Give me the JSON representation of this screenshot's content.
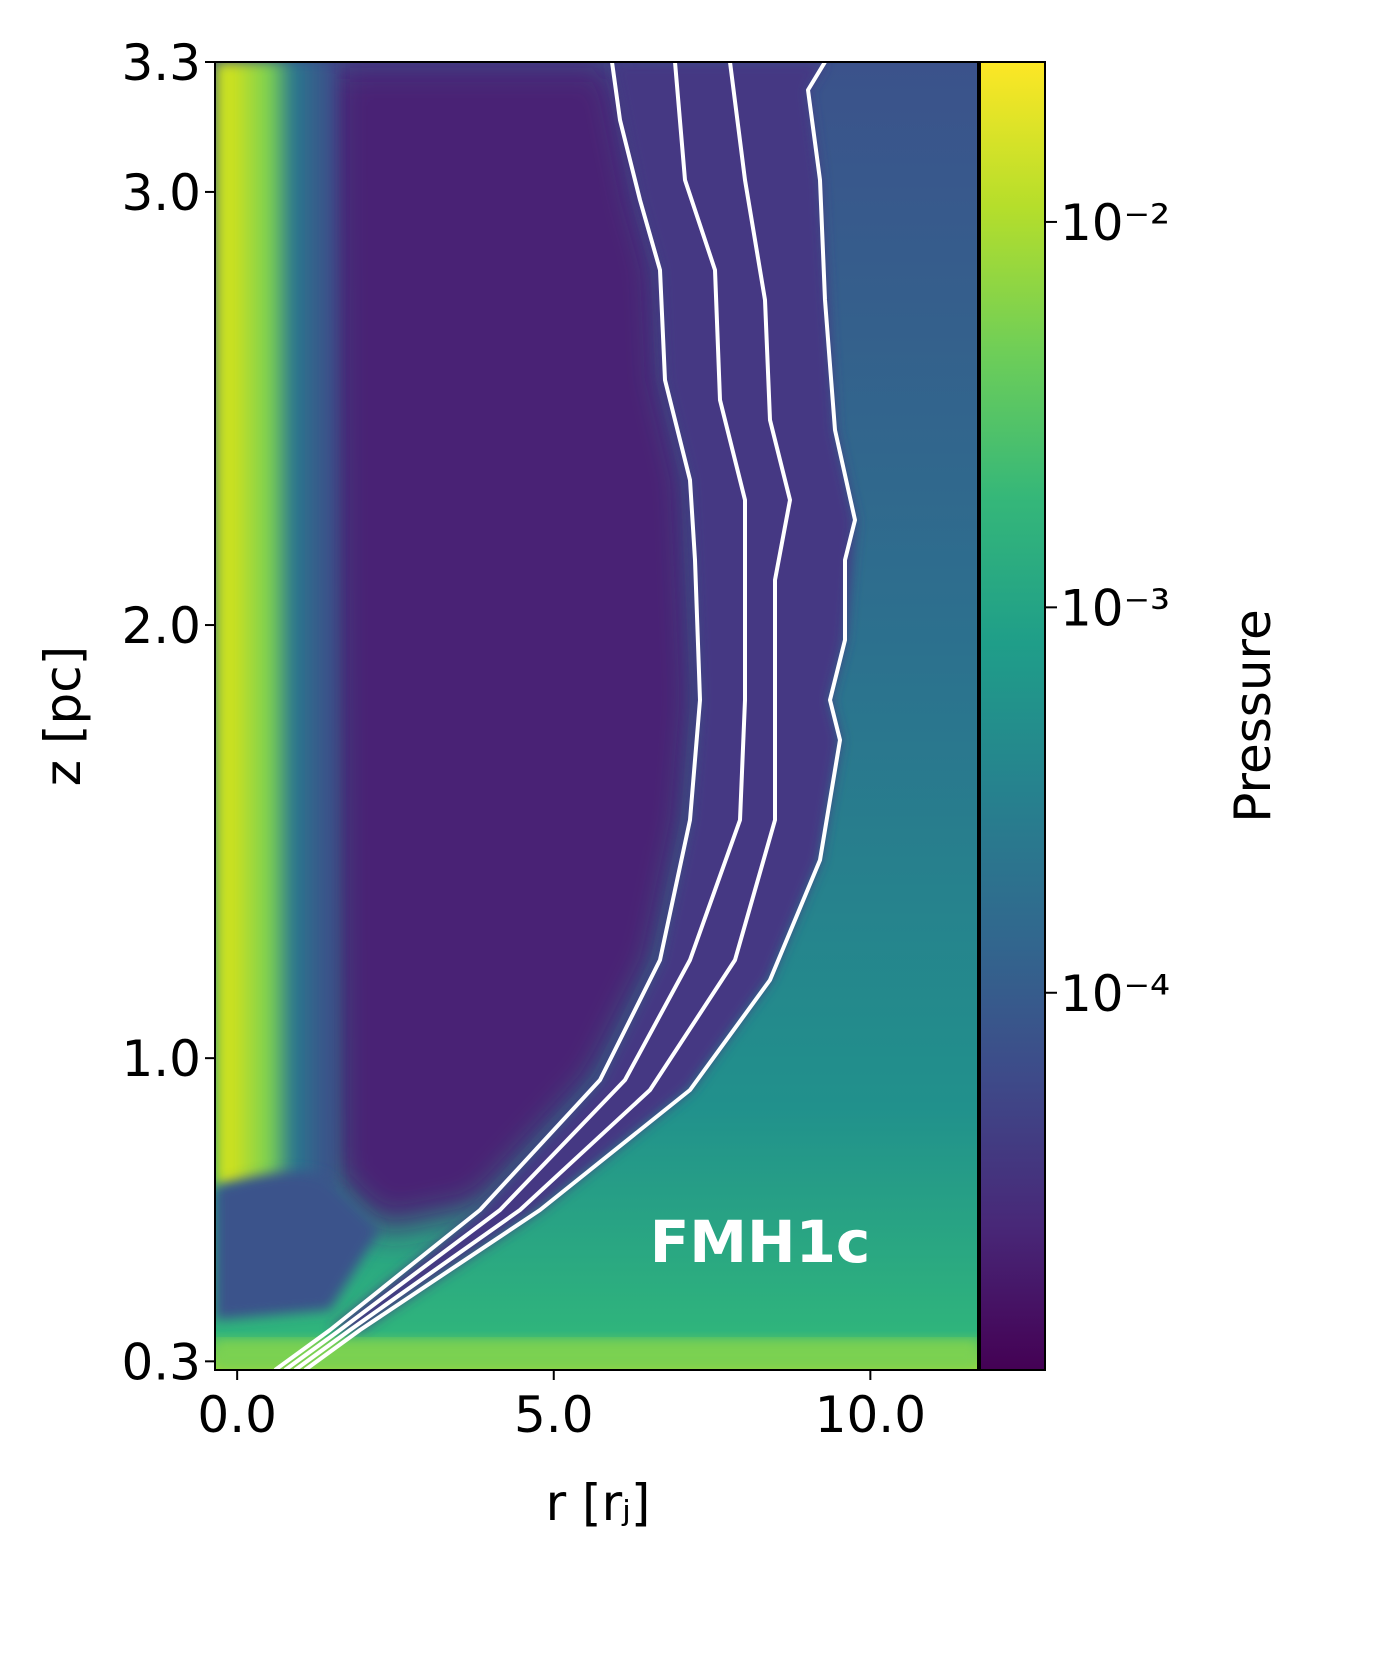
{
  "chart_data": {
    "type": "heatmap",
    "xlabel": "r [rⱼ]",
    "ylabel": "z [pc]",
    "annotation": "FMH1c",
    "xlim": [
      -0.35,
      11.7
    ],
    "xticks": [
      {
        "value": 0,
        "label": "0.0"
      },
      {
        "value": 5,
        "label": "5.0"
      },
      {
        "value": 10,
        "label": "10.0"
      }
    ],
    "ylim": [
      0.28,
      3.3
    ],
    "yticks": [
      {
        "value": 0.3,
        "label": "0.3"
      },
      {
        "value": 1,
        "label": "1.0"
      },
      {
        "value": 2,
        "label": "2.0"
      },
      {
        "value": 3,
        "label": "3.0"
      },
      {
        "value": 3.3,
        "label": "3.3"
      }
    ],
    "colorbar": {
      "label": "Pressure",
      "log": true,
      "clim": [
        1.05e-05,
        0.026
      ],
      "ticks": [
        {
          "value": 0.01,
          "label": "10⁻²"
        },
        {
          "value": 0.001,
          "label": "10⁻³"
        },
        {
          "value": 0.0001,
          "label": "10⁻⁴"
        }
      ],
      "colormap": [
        "#440154",
        "#482878",
        "#3e4a89",
        "#31688e",
        "#26828e",
        "#1f9e89",
        "#35b779",
        "#6ece58",
        "#b5de2b",
        "#fde725"
      ]
    }
  }
}
